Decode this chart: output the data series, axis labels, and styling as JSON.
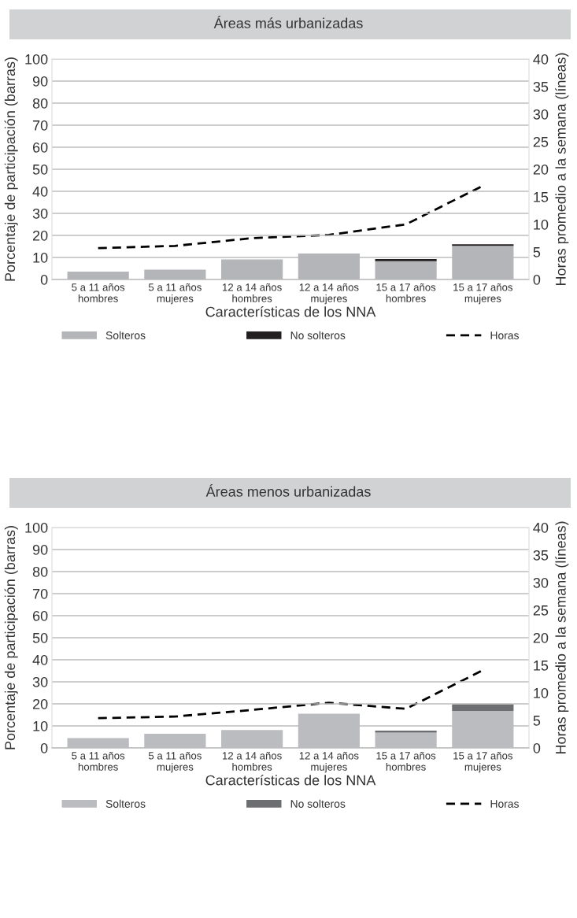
{
  "chart_data": [
    {
      "type": "bar",
      "title": "Áreas más urbanizadas",
      "xlabel": "Características de los NNA",
      "ylabel": "Porcentaje de participación (barras)",
      "y2label": "Horas promedio a la semana (líneas)",
      "categories": [
        "5 a 11 años\nhombres",
        "5 a 11 años\nmujeres",
        "12 a 14 años\nhombres",
        "12 a 14 años\nmujeres",
        "15 a 17 años\nhombres",
        "15 a 17 años\nmujeres"
      ],
      "stacked": true,
      "series": [
        {
          "name": "Solteros",
          "color": "#b4b5b8",
          "values": [
            3.6,
            4.5,
            9.1,
            11.8,
            8.3,
            15.3
          ]
        },
        {
          "name": "No solteros",
          "color": "#231f20",
          "values": [
            0,
            0,
            0,
            0,
            1.0,
            0.7
          ]
        },
        {
          "name": "Horas",
          "type": "line",
          "axis": "y2",
          "color": "#000000",
          "line_style": "dashed",
          "values": [
            5.7,
            6.1,
            7.5,
            8.1,
            10.0,
            17.0
          ]
        }
      ],
      "ylim": [
        0,
        100
      ],
      "yticks": [
        0,
        10,
        20,
        30,
        40,
        50,
        60,
        70,
        80,
        90,
        100
      ],
      "y2lim": [
        0,
        40
      ],
      "y2ticks": [
        0,
        5,
        10,
        15,
        20,
        25,
        30,
        35,
        40
      ],
      "grid": "y",
      "legend": "bottom"
    },
    {
      "type": "bar",
      "title": "Áreas menos urbanizadas",
      "xlabel": "Características de los NNA",
      "ylabel": "Porcentaje de participación (barras)",
      "y2label": "Horas promedio a la semana (líneas)",
      "categories": [
        "5 a 11 años\nhombres",
        "5 a 11 años\nmujeres",
        "12 a 14 años\nhombres",
        "12 a 14 años\nmujeres",
        "15 a 17 años\nhombres",
        "15 a 17 años\nmujeres"
      ],
      "stacked": true,
      "series": [
        {
          "name": "Solteros",
          "color": "#bbbcbf",
          "values": [
            4.5,
            6.4,
            8.1,
            15.5,
            7.0,
            16.8
          ]
        },
        {
          "name": "No solteros",
          "color": "#6d6e71",
          "values": [
            0,
            0,
            0,
            0,
            0.9,
            2.9
          ]
        },
        {
          "name": "Horas",
          "type": "line",
          "axis": "y2",
          "color": "#000000",
          "line_style": "dashed",
          "values": [
            5.4,
            5.7,
            6.9,
            8.2,
            7.1,
            14.1
          ]
        }
      ],
      "ylim": [
        0,
        100
      ],
      "yticks": [
        0,
        10,
        20,
        30,
        40,
        50,
        60,
        70,
        80,
        90,
        100
      ],
      "y2lim": [
        0,
        40
      ],
      "y2ticks": [
        0,
        5,
        10,
        15,
        20,
        25,
        30,
        35,
        40
      ],
      "grid": "y",
      "legend": "bottom"
    }
  ]
}
